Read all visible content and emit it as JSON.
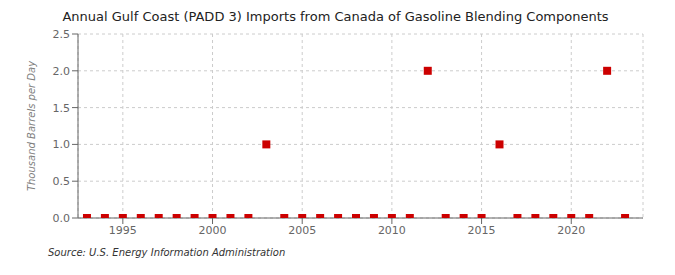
{
  "chart_data": {
    "type": "scatter",
    "title": "Annual Gulf Coast (PADD 3) Imports from Canada of Gasoline Blending Components",
    "ylabel": "Thousand Barrels per Day",
    "annotations": [
      "Source: U.S. Energy Information Administration"
    ],
    "x": [
      1993,
      1994,
      1995,
      1996,
      1997,
      1998,
      1999,
      2000,
      2001,
      2002,
      2003,
      2004,
      2005,
      2006,
      2007,
      2008,
      2009,
      2010,
      2011,
      2012,
      2013,
      2014,
      2015,
      2016,
      2017,
      2018,
      2019,
      2020,
      2021,
      2022,
      2023
    ],
    "values": [
      0,
      0,
      0,
      0,
      0,
      0,
      0,
      0,
      0,
      0,
      1.0,
      0,
      0,
      0,
      0,
      0,
      0,
      0,
      0,
      2.0,
      0,
      0,
      0,
      1.0,
      0,
      0,
      0,
      0,
      0,
      2.0,
      0
    ],
    "color": "#cc0000",
    "marker": "square",
    "xlim": [
      1992.5,
      2024
    ],
    "ylim": [
      0,
      2.5
    ],
    "xticks": [
      1995,
      2000,
      2005,
      2010,
      2015,
      2020
    ],
    "yticks": [
      {
        "value": 0.0,
        "label": "0.0"
      },
      0.5,
      {
        "value": 1.0,
        "label": "1.0"
      },
      1.5,
      {
        "value": 2.0,
        "label": "2.0"
      },
      2.5
    ],
    "grid": true
  }
}
